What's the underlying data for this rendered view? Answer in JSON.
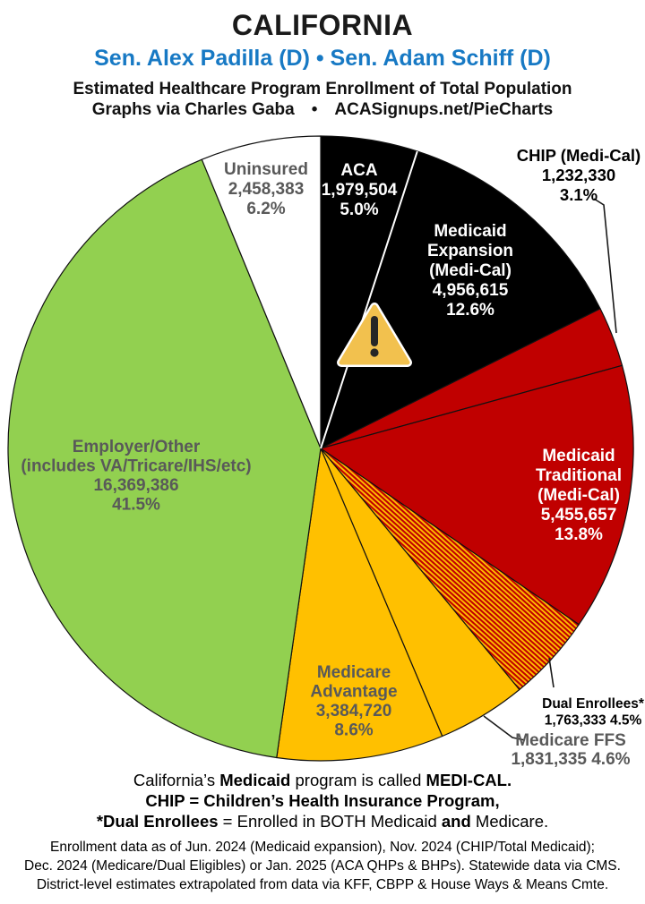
{
  "header": {
    "state": "CALIFORNIA",
    "senators": "Sen. Alex Padilla (D) • Sen. Adam Schiff (D)",
    "subtitle": "Estimated Healthcare Program Enrollment of Total Population",
    "credit": "Graphs via Charles Gaba  •  ACASignups.net/PieCharts"
  },
  "colors": {
    "black": "#000000",
    "red": "#C00000",
    "gold": "#FFC000",
    "green": "#92D050",
    "white": "#FFFFFF",
    "accent_blue": "#1779C4",
    "label_gray": "#595959",
    "outline": "#111111",
    "warning_fill": "#F2C14E",
    "warning_glyph": "#262626"
  },
  "chart_data": {
    "type": "pie",
    "title": "Estimated Healthcare Program Enrollment of Total Population",
    "state": "California",
    "start_angle_deg": 0,
    "direction": "clockwise",
    "units": "people",
    "slices": [
      {
        "id": "aca",
        "name": "ACA",
        "enrollment": 1979504,
        "enrollment_display": "1,979,504",
        "pct": 5.0,
        "pct_display": "5.0%",
        "color": "black",
        "label_placement": "inside",
        "label_lines": [
          "ACA",
          "1,979,504",
          "5.0%"
        ]
      },
      {
        "id": "medicaid_expansion",
        "name": "Medicaid Expansion (Medi-Cal)",
        "enrollment": 4956615,
        "enrollment_display": "4,956,615",
        "pct": 12.6,
        "pct_display": "12.6%",
        "color": "black",
        "label_placement": "inside",
        "label_lines": [
          "Medicaid",
          "Expansion",
          "(Medi-Cal)",
          "4,956,615",
          "12.6%"
        ]
      },
      {
        "id": "chip",
        "name": "CHIP (Medi-Cal)",
        "enrollment": 1232330,
        "enrollment_display": "1,232,330",
        "pct": 3.1,
        "pct_display": "3.1%",
        "color": "red",
        "label_placement": "outside",
        "label_lines": [
          "CHIP (Medi-Cal)",
          "1,232,330",
          "3.1%"
        ]
      },
      {
        "id": "medicaid_traditional",
        "name": "Medicaid Traditional (Medi-Cal)",
        "enrollment": 5455657,
        "enrollment_display": "5,455,657",
        "pct": 13.8,
        "pct_display": "13.8%",
        "color": "red",
        "label_placement": "inside",
        "label_lines": [
          "Medicaid",
          "Traditional",
          "(Medi-Cal)",
          "5,455,657",
          "13.8%"
        ]
      },
      {
        "id": "dual",
        "name": "Dual Enrollees*",
        "enrollment": 1763333,
        "enrollment_display": "1,763,333",
        "pct": 4.5,
        "pct_display": "4.5%",
        "color": "hatch",
        "label_placement": "outside",
        "label_lines": [
          "Dual Enrollees*",
          "1,763,333 4.5%"
        ]
      },
      {
        "id": "medicare_ffs",
        "name": "Medicare FFS",
        "enrollment": 1831335,
        "enrollment_display": "1,831,335",
        "pct": 4.6,
        "pct_display": "4.6%",
        "color": "gold",
        "label_placement": "outside",
        "label_lines": [
          "Medicare FFS",
          "1,831,335 4.6%"
        ]
      },
      {
        "id": "medicare_advantage",
        "name": "Medicare Advantage",
        "enrollment": 3384720,
        "enrollment_display": "3,384,720",
        "pct": 8.6,
        "pct_display": "8.6%",
        "color": "gold",
        "label_placement": "inside",
        "label_lines": [
          "Medicare",
          "Advantage",
          "3,384,720",
          "8.6%"
        ]
      },
      {
        "id": "employer",
        "name": "Employer/Other (includes VA/Tricare/IHS/etc)",
        "enrollment": 16369386,
        "enrollment_display": "16,369,386",
        "pct": 41.5,
        "pct_display": "41.5%",
        "color": "green",
        "label_placement": "inside",
        "label_lines": [
          "Employer/Other",
          "(includes VA/Tricare/IHS/etc)",
          "16,369,386",
          "41.5%"
        ]
      },
      {
        "id": "uninsured",
        "name": "Uninsured",
        "enrollment": 2458383,
        "enrollment_display": "2,458,383",
        "pct": 6.2,
        "pct_display": "6.2%",
        "color": "white",
        "label_placement": "inside",
        "label_lines": [
          "Uninsured",
          "2,458,383",
          "6.2%"
        ]
      }
    ]
  },
  "notes": {
    "line1": [
      {
        "t": "California’s ",
        "b": false
      },
      {
        "t": "Medicaid",
        "b": true
      },
      {
        "t": " program is called ",
        "b": false
      },
      {
        "t": "MEDI-CAL.",
        "b": true
      }
    ],
    "line2": [
      {
        "t": "CHIP = Children’s Health Insurance Program,",
        "b": true
      }
    ],
    "line3": [
      {
        "t": "*Dual Enrollees",
        "b": true
      },
      {
        "t": " = Enrolled in BOTH Medicaid ",
        "b": false
      },
      {
        "t": "and",
        "b": true
      },
      {
        "t": " Medicare.",
        "b": false
      }
    ]
  },
  "sources": [
    "Enrollment data as of Jun. 2024 (Medicaid expansion), Nov. 2024 (CHIP/Total Medicaid);",
    "Dec. 2024 (Medicare/Dual Eligibles) or Jan. 2025 (ACA QHPs & BHPs). Statewide data via CMS.",
    "District-level estimates extrapolated from data via KFF, CBPP & House Ways & Means Cmte."
  ]
}
